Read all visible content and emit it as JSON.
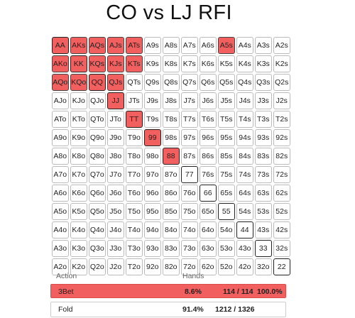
{
  "title": "CO vs LJ RFI",
  "grid": {
    "rows": [
      [
        "AA",
        "AKs",
        "AQs",
        "AJs",
        "ATs",
        "A9s",
        "A8s",
        "A7s",
        "A6s",
        "A5s",
        "A4s",
        "A3s",
        "A2s"
      ],
      [
        "AKo",
        "KK",
        "KQs",
        "KJs",
        "KTs",
        "K9s",
        "K8s",
        "K7s",
        "K6s",
        "K5s",
        "K4s",
        "K3s",
        "K2s"
      ],
      [
        "AQo",
        "KQo",
        "QQ",
        "QJs",
        "QTs",
        "Q9s",
        "Q8s",
        "Q7s",
        "Q6s",
        "Q5s",
        "Q4s",
        "Q3s",
        "Q2s"
      ],
      [
        "AJo",
        "KJo",
        "QJo",
        "JJ",
        "JTs",
        "J9s",
        "J8s",
        "J7s",
        "J6s",
        "J5s",
        "J4s",
        "J3s",
        "J2s"
      ],
      [
        "ATo",
        "KTo",
        "QTo",
        "JTo",
        "TT",
        "T9s",
        "T8s",
        "T7s",
        "T6s",
        "T5s",
        "T4s",
        "T3s",
        "T2s"
      ],
      [
        "A9o",
        "K9o",
        "Q9o",
        "J9o",
        "T9o",
        "99",
        "98s",
        "97s",
        "96s",
        "95s",
        "94s",
        "93s",
        "92s"
      ],
      [
        "A8o",
        "K8o",
        "Q8o",
        "J8o",
        "T8o",
        "98o",
        "88",
        "87s",
        "86s",
        "85s",
        "84s",
        "83s",
        "82s"
      ],
      [
        "A7o",
        "K7o",
        "Q7o",
        "J7o",
        "T7o",
        "97o",
        "87o",
        "77",
        "76s",
        "75s",
        "74s",
        "73s",
        "72s"
      ],
      [
        "A6o",
        "K6o",
        "Q6o",
        "J6o",
        "T6o",
        "96o",
        "86o",
        "76o",
        "66",
        "65s",
        "64s",
        "63s",
        "62s"
      ],
      [
        "A5o",
        "K5o",
        "Q5o",
        "J5o",
        "T5o",
        "95o",
        "85o",
        "75o",
        "65o",
        "55",
        "54s",
        "53s",
        "52s"
      ],
      [
        "A4o",
        "K4o",
        "Q4o",
        "J4o",
        "T4o",
        "94o",
        "84o",
        "74o",
        "64o",
        "54o",
        "44",
        "43s",
        "42s"
      ],
      [
        "A3o",
        "K3o",
        "Q3o",
        "J3o",
        "T3o",
        "93o",
        "83o",
        "73o",
        "63o",
        "53o",
        "43o",
        "33",
        "32s"
      ],
      [
        "A2o",
        "K2o",
        "Q2o",
        "J2o",
        "T2o",
        "92o",
        "82o",
        "72o",
        "62o",
        "52o",
        "42o",
        "32o",
        "22"
      ]
    ],
    "highlighted": [
      "AA",
      "AKs",
      "AQs",
      "AJs",
      "ATs",
      "A5s",
      "AKo",
      "KK",
      "KQs",
      "KJs",
      "KTs",
      "AQo",
      "KQo",
      "QQ",
      "QJs",
      "JJ",
      "TT",
      "99",
      "88"
    ],
    "highlight_color": "#f25f5f"
  },
  "table": {
    "header_action": "Action",
    "header_hands": "Hands",
    "rows": [
      {
        "action": "3Bet",
        "pct": "8.6%",
        "count": "114 / 114",
        "freq": "100.0%",
        "color": "#f25f5f"
      },
      {
        "action": "Fold",
        "pct": "91.4%",
        "count": "1212 / 1326",
        "freq": "",
        "color": "#ffffff"
      }
    ]
  }
}
